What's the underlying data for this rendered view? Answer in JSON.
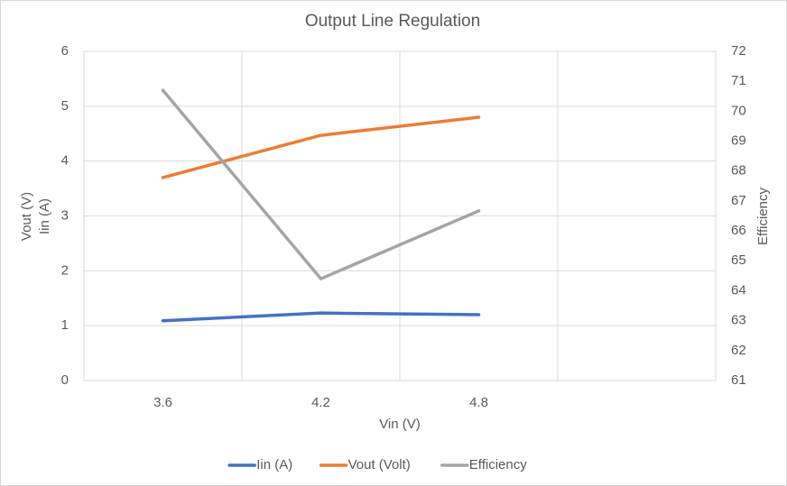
{
  "chart_data": {
    "type": "line",
    "title": "Output Line Regulation",
    "xlabel": "Vin (V)",
    "ylabel": [
      "Vout (V)",
      "Iin (A)"
    ],
    "y2label": "Efficiency",
    "categories": [
      "3.6",
      "4.2",
      "4.8",
      null
    ],
    "series": [
      {
        "name": "Iin (A)",
        "color": "#4472c4",
        "values": [
          1.09,
          1.23,
          1.2,
          null
        ]
      },
      {
        "name": "Vout (Volt)",
        "color": "#ed7d31",
        "values": [
          3.7,
          4.47,
          4.8,
          null
        ]
      },
      {
        "name": "Efficiency",
        "color": "#a5a5a5",
        "axis": "y2",
        "values": [
          70.7,
          64.4,
          66.67,
          null
        ]
      }
    ],
    "ylim": [
      0,
      6
    ],
    "yticks": [
      0,
      1,
      2,
      3,
      4,
      5,
      6
    ],
    "y2lim": [
      61,
      72
    ],
    "y2ticks": [
      61,
      62,
      63,
      64,
      65,
      66,
      67,
      68,
      69,
      70,
      71,
      72
    ],
    "grid": true,
    "legend": "bottom"
  }
}
